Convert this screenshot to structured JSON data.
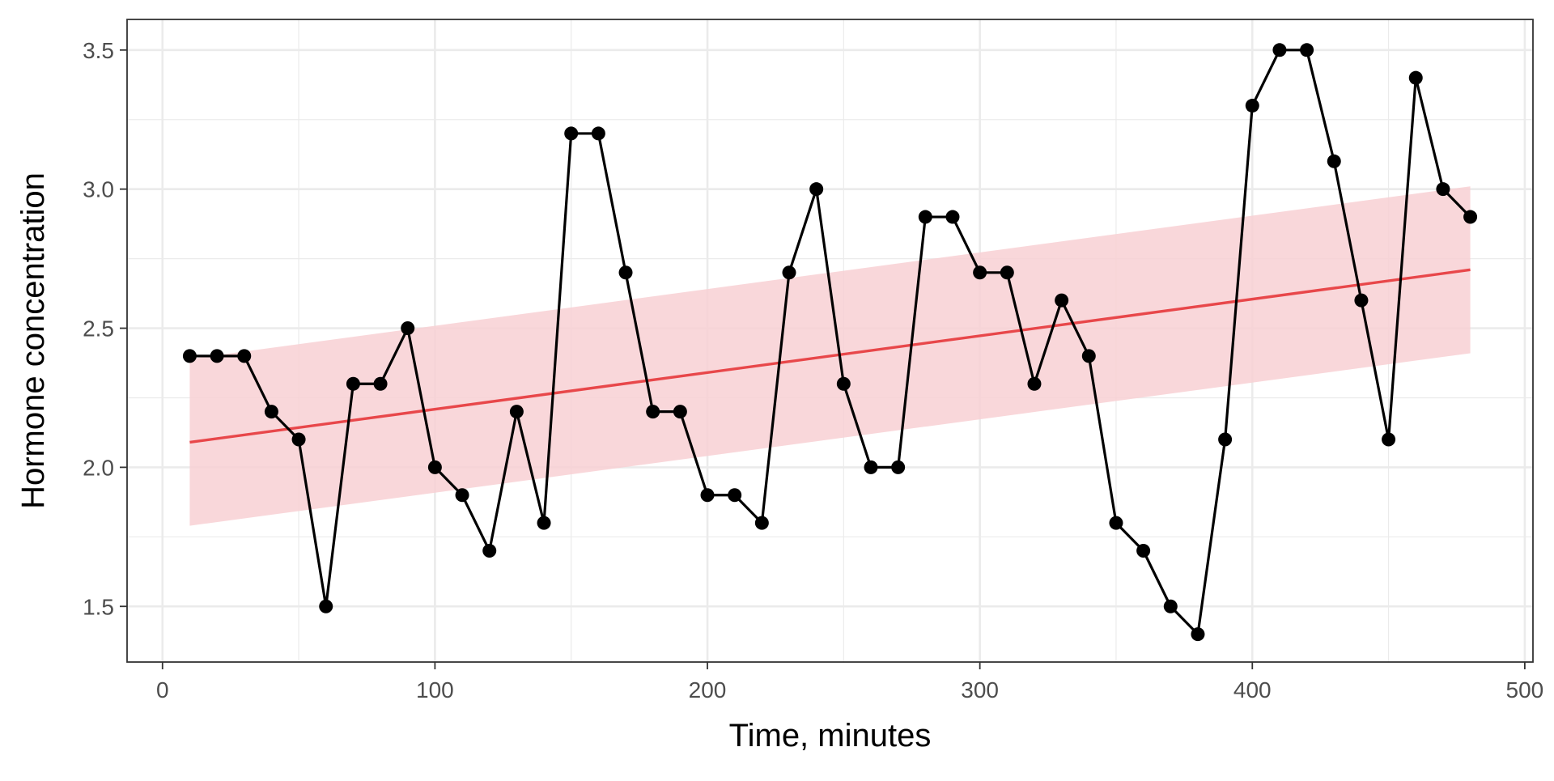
{
  "chart_data": {
    "type": "line",
    "title": "",
    "xlabel": "Time, minutes",
    "ylabel": "Hormone concentration",
    "xlim": [
      -13,
      503
    ],
    "ylim": [
      1.3,
      3.61
    ],
    "x_ticks": [
      0,
      100,
      200,
      300,
      400,
      500
    ],
    "x_tick_labels": [
      "0",
      "100",
      "200",
      "300",
      "400",
      "500"
    ],
    "y_ticks": [
      1.5,
      2.0,
      2.5,
      3.0,
      3.5
    ],
    "y_tick_labels": [
      "1.5",
      "2.0",
      "2.5",
      "3.0",
      "3.5"
    ],
    "grid": true,
    "series": [
      {
        "type": "line+points",
        "color": "#000000",
        "x": [
          10,
          20,
          30,
          40,
          50,
          60,
          70,
          80,
          90,
          100,
          110,
          120,
          130,
          140,
          150,
          160,
          170,
          180,
          190,
          200,
          210,
          220,
          230,
          240,
          250,
          260,
          270,
          280,
          290,
          300,
          310,
          320,
          330,
          340,
          350,
          360,
          370,
          380,
          390,
          400,
          410,
          420,
          430,
          440,
          450,
          460,
          470,
          480
        ],
        "y": [
          2.4,
          2.4,
          2.4,
          2.2,
          2.1,
          1.5,
          2.3,
          2.3,
          2.5,
          2.0,
          1.9,
          1.7,
          2.2,
          1.8,
          3.2,
          3.2,
          2.7,
          2.2,
          2.2,
          1.9,
          1.9,
          1.8,
          2.7,
          3.0,
          2.3,
          2.0,
          2.0,
          2.9,
          2.9,
          2.7,
          2.7,
          2.3,
          2.6,
          2.4,
          1.8,
          1.7,
          1.5,
          1.4,
          2.1,
          3.3,
          3.5,
          3.5,
          3.1,
          2.6,
          2.1,
          3.4,
          3.0,
          2.9
        ]
      }
    ],
    "trend": {
      "type": "linear-fit",
      "color": "#e8474a",
      "band_color": "#f8d0d3",
      "x": [
        10,
        480
      ],
      "y": [
        2.09,
        2.71
      ],
      "band_lower": [
        1.79,
        2.41
      ],
      "band_upper": [
        2.39,
        3.01
      ]
    },
    "colors": {
      "grid": "#ebebeb",
      "panel_border": "#333333",
      "tick": "#333333"
    }
  }
}
